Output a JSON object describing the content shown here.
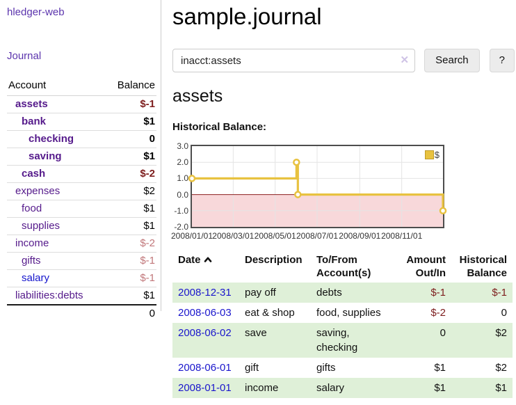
{
  "app": {
    "name": "hledger-web"
  },
  "sidebar": {
    "journal_link": "Journal",
    "accounts": {
      "header": {
        "account": "Account",
        "balance": "Balance"
      },
      "rows": [
        {
          "name": "assets",
          "balance": "$-1"
        },
        {
          "name": "bank",
          "balance": "$1"
        },
        {
          "name": "checking",
          "balance": "0"
        },
        {
          "name": "saving",
          "balance": "$1"
        },
        {
          "name": "cash",
          "balance": "$-2"
        },
        {
          "name": "expenses",
          "balance": "$2"
        },
        {
          "name": "food",
          "balance": "$1"
        },
        {
          "name": "supplies",
          "balance": "$1"
        },
        {
          "name": "income",
          "balance": "$-2"
        },
        {
          "name": "gifts",
          "balance": "$-1"
        },
        {
          "name": "salary",
          "balance": "$-1"
        },
        {
          "name": "liabilities:debts",
          "balance": "$1"
        }
      ],
      "total": "0"
    }
  },
  "main": {
    "title": "sample.journal",
    "search": {
      "value": "inacct:assets",
      "clear_icon": "✕",
      "search_button": "Search",
      "help_button": "?"
    },
    "account_heading": "assets",
    "chart_title": "Historical Balance:"
  },
  "chart_data": {
    "type": "line",
    "style": "step",
    "title": "Historical Balance:",
    "series": [
      {
        "name": "$",
        "color": "#e8c240",
        "points": [
          [
            "2008-01-01",
            1
          ],
          [
            "2008-06-01",
            2
          ],
          [
            "2008-06-03",
            0
          ],
          [
            "2008-12-31",
            -1
          ]
        ]
      }
    ],
    "x_range": [
      "2008-01-01",
      "2008-12-31"
    ],
    "x_tick_labels": [
      "2008/01/01",
      "2008/03/01",
      "2008/05/01",
      "2008/07/01",
      "2008/09/01",
      "2008/11/01"
    ],
    "y_tick_labels": [
      "3.0",
      "2.0",
      "1.0",
      "0.0",
      "-1.0",
      "-2.0"
    ],
    "ylim": [
      -2,
      3
    ],
    "grid": true,
    "legend": {
      "label": "$",
      "position": "top-right"
    },
    "negative_region_color": "#f8d8da",
    "zero_line_color": "#8b1e1e",
    "gridline_color": "#e4e4e4"
  },
  "register": {
    "headers": {
      "date": "Date",
      "description": "Description",
      "accounts": "To/From Account(s)",
      "amount": "Amount Out/In",
      "balance": "Historical Balance"
    },
    "rows": [
      {
        "date": "2008-12-31",
        "description": "pay off",
        "accounts": "debts",
        "amount": "$-1",
        "balance": "$-1"
      },
      {
        "date": "2008-06-03",
        "description": "eat & shop",
        "accounts": "food, supplies",
        "amount": "$-2",
        "balance": "0"
      },
      {
        "date": "2008-06-02",
        "description": "save",
        "accounts": "saving, checking",
        "amount": "0",
        "balance": "$2"
      },
      {
        "date": "2008-06-01",
        "description": "gift",
        "accounts": "gifts",
        "amount": "$1",
        "balance": "$2"
      },
      {
        "date": "2008-01-01",
        "description": "income",
        "accounts": "salary",
        "amount": "$1",
        "balance": "$1"
      }
    ]
  }
}
